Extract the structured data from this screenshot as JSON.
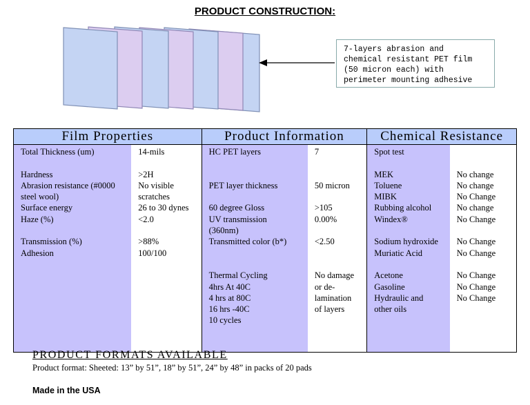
{
  "page": {
    "heading": "PRODUCT CONSTRUCTION:",
    "callout": "7-layers abrasion and\nchemical resistant PET film\n(50 micron each) with\nperimeter mounting adhesive"
  },
  "colors": {
    "layer_blue": "#c4d4f3",
    "layer_pink": "#dccdf0",
    "header_blue": "#b9cdfb",
    "column_lavender": "#c7c2fc"
  },
  "table": {
    "headers": [
      "Film Properties",
      "Product Information",
      "Chemical Resistance"
    ],
    "film_properties": {
      "labels": [
        "Total Thickness (um)",
        "",
        "Hardness",
        "Abrasion resistance (#0000",
        "steel wool)",
        "Surface energy",
        "Haze (%)",
        "",
        "Transmission (%)",
        "Adhesion"
      ],
      "values": [
        "14-mils",
        "",
        ">2H",
        "No visible",
        "scratches",
        "26 to 30 dynes",
        "<2.0",
        "",
        ">88%",
        "100/100"
      ]
    },
    "product_information": {
      "labels": [
        "HC PET layers",
        "",
        "",
        "PET layer thickness",
        "",
        " 60 degree Gloss",
        " UV transmission",
        "(360nm)",
        "Transmitted color (b*)",
        "",
        "",
        "Thermal Cycling",
        "4hrs At 40C",
        "4 hrs at 80C",
        "16 hrs -40C",
        "10 cycles"
      ],
      "values": [
        "7",
        "",
        "",
        "50 micron",
        "",
        ">105",
        "0.00%",
        "",
        "<2.50",
        "",
        "",
        "No damage",
        "or de-",
        "lamination",
        "of layers"
      ]
    },
    "chemical_resistance": {
      "labels": [
        "Spot test",
        "",
        "MEK",
        "Toluene",
        "MIBK",
        "Rubbing alcohol",
        "Windex®",
        "",
        "Sodium hydroxide",
        "Muriatic Acid",
        "",
        "Acetone",
        "Gasoline",
        "Hydraulic and",
        "other oils"
      ],
      "values": [
        "",
        "",
        "No change",
        "No change",
        "No Change",
        "No change",
        "No Change",
        "",
        "No Change",
        "No Change",
        "",
        "No Change",
        "No Change",
        "No Change"
      ]
    }
  },
  "formats": {
    "title": "PRODUCT FORMATS AVAILABLE",
    "text": "Product format: Sheeted: 13” by 51”, 18” by 51”, 24” by 48” in packs of 20 pads"
  },
  "footer": "Made in the USA"
}
